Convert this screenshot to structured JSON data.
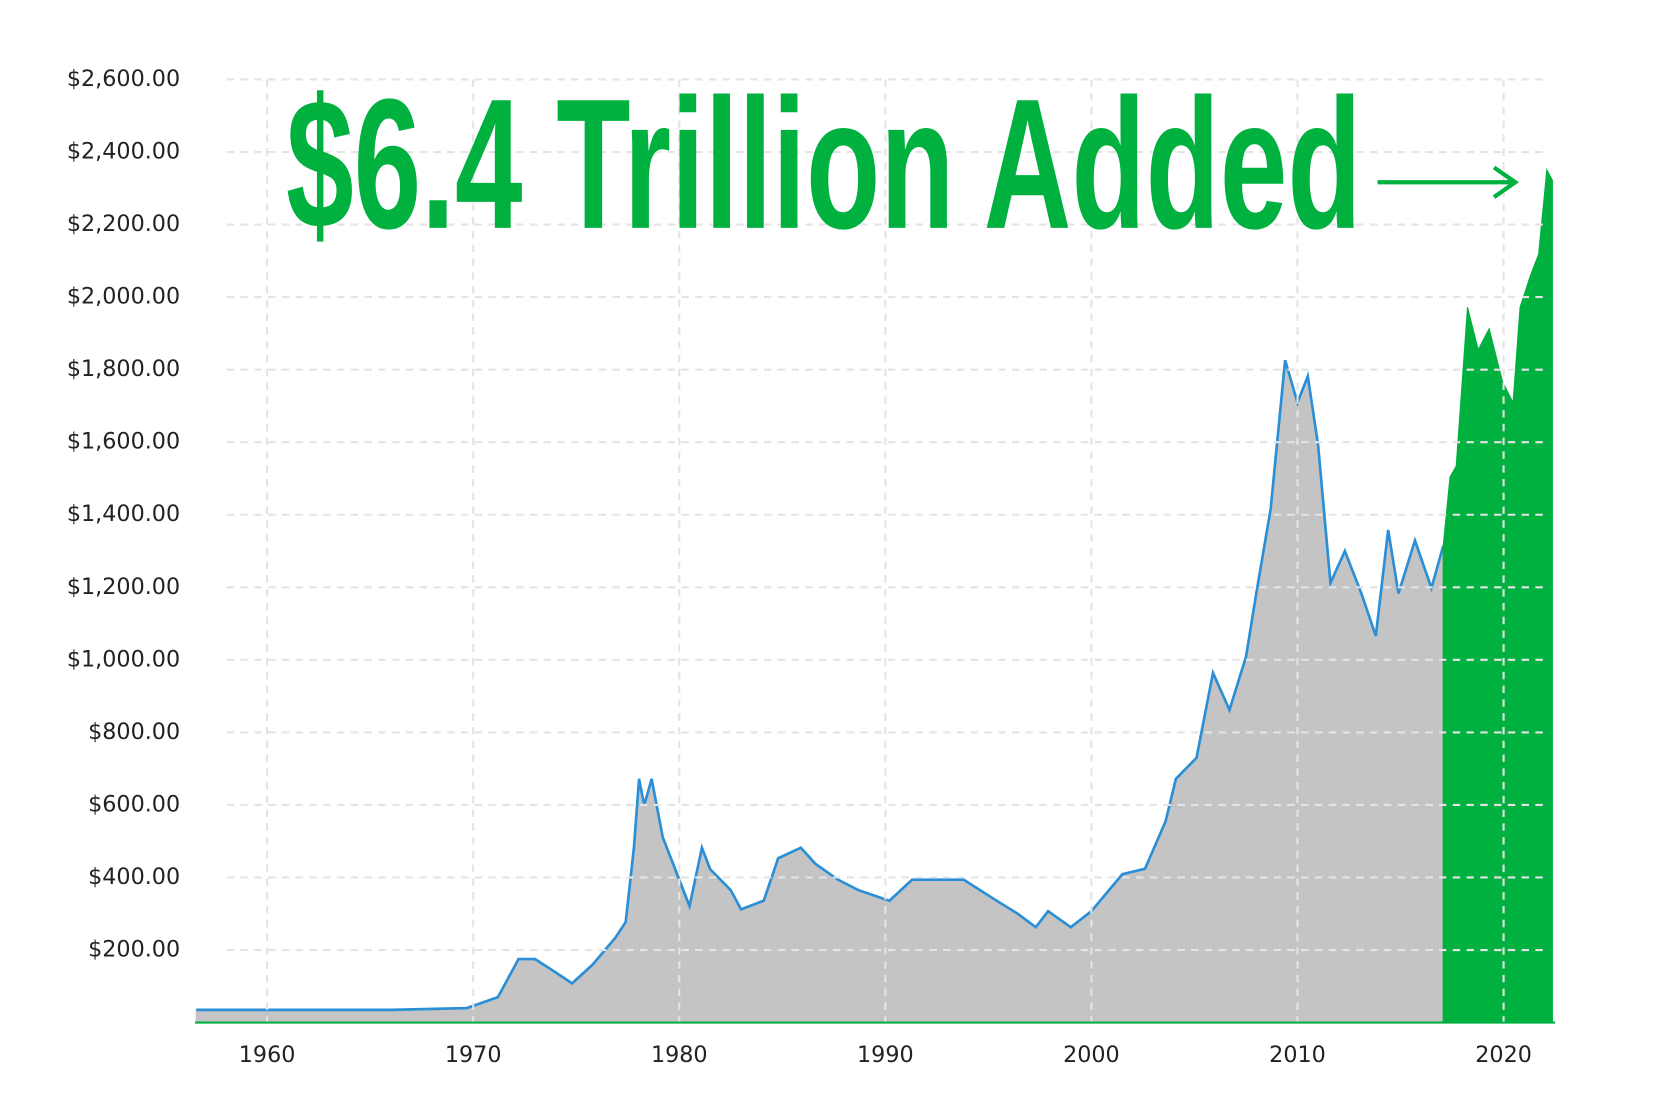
{
  "chart_data": {
    "type": "area",
    "annotation": "$6.4 Trillion Added",
    "xlim": [
      1956.5,
      2022.5
    ],
    "xticks": [
      1960,
      1970,
      1980,
      1990,
      2000,
      2010,
      2020
    ],
    "ylim": [
      0,
      2600
    ],
    "yticks": [
      {
        "value": 200,
        "label": "$200.00"
      },
      {
        "value": 400,
        "label": "$400.00"
      },
      {
        "value": 600,
        "label": "$600.00"
      },
      {
        "value": 800,
        "label": "$800.00"
      },
      {
        "value": 1000,
        "label": "$1,000.00"
      },
      {
        "value": 1200,
        "label": "$1,200.00"
      },
      {
        "value": 1400,
        "label": "$1,400.00"
      },
      {
        "value": 1600,
        "label": "$1,600.00"
      },
      {
        "value": 1800,
        "label": "$1,800.00"
      },
      {
        "value": 2000,
        "label": "$2,000.00"
      },
      {
        "value": 2200,
        "label": "$2,200.00"
      },
      {
        "value": 2400,
        "label": "$2,400.00"
      },
      {
        "value": 2600,
        "label": "$2,600.00"
      }
    ],
    "grid": true,
    "series": [
      {
        "color": "#c4c4c4",
        "line_color": "#2a8fd6",
        "x": [
          1956.56,
          1966.07,
          1969.7,
          1971.2,
          1972.2,
          1973.0,
          1973.8,
          1974.8,
          1975.8,
          1976.9,
          1977.4,
          1977.8,
          1978.05,
          1978.3,
          1978.66,
          1979.2,
          1980.0,
          1980.5,
          1981.1,
          1981.5,
          1982.5,
          1983.0,
          1984.1,
          1984.8,
          1985.9,
          1986.6,
          1987.7,
          1988.7,
          1990.2,
          1991.3,
          1992.3,
          1993.8,
          1995.4,
          1996.4,
          1997.3,
          1997.9,
          1999.0,
          2000.0,
          2001.5,
          2002.6,
          2003.6,
          2004.1,
          2005.1,
          2005.9,
          2006.7,
          2007.5,
          2008.0,
          2008.7,
          2009.4,
          2010.0,
          2010.5,
          2011.0,
          2011.6,
          2012.3,
          2013.1,
          2013.8,
          2014.4,
          2014.9,
          2015.7,
          2016.5,
          2017.07
        ],
        "values": [
          35,
          35,
          40,
          70,
          175,
          175,
          146,
          108,
          160,
          234,
          277,
          482,
          672,
          599,
          672,
          511,
          394,
          321,
          482,
          423,
          365,
          312,
          336,
          453,
          482,
          438,
          394,
          365,
          336,
          394,
          394,
          394,
          336,
          301,
          263,
          307,
          263,
          307,
          409,
          424,
          555,
          672,
          730,
          964,
          862,
          1008,
          1183,
          1417,
          1826,
          1709,
          1782,
          1592,
          1212,
          1300,
          1183,
          1066,
          1358,
          1183,
          1329,
          1198,
          1314
        ]
      },
      {
        "color": "#00b140",
        "x": [
          2017.07,
          2017.4,
          2017.7,
          2018.25,
          2018.77,
          2019.3,
          2019.95,
          2020.46,
          2020.8,
          2021.3,
          2021.7,
          2022.1,
          2022.37
        ],
        "values": [
          1314,
          1504,
          1534,
          1972,
          1855,
          1913,
          1767,
          1709,
          1972,
          2059,
          2118,
          2351,
          2322
        ]
      }
    ]
  }
}
